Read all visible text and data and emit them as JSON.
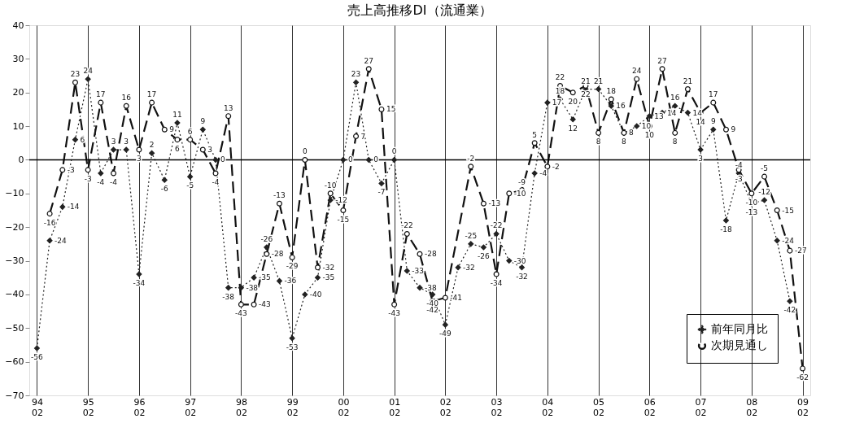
{
  "chart_data": {
    "type": "line",
    "title": "売上高推移DI（流通業）",
    "categories": [
      "94 02",
      null,
      null,
      null,
      "95 02",
      null,
      null,
      null,
      "96 02",
      null,
      null,
      null,
      "97 02",
      null,
      null,
      null,
      "98 02",
      null,
      null,
      null,
      "99 02",
      null,
      null,
      null,
      "00 02",
      null,
      null,
      null,
      "01 02",
      null,
      null,
      null,
      "02 02",
      null,
      null,
      null,
      "03 02",
      null,
      null,
      null,
      "04 02",
      null,
      null,
      null,
      "05 02",
      null,
      null,
      null,
      "06 02",
      null,
      null,
      null,
      "07 02",
      null,
      null,
      null,
      "08 02",
      null,
      null,
      null,
      "09 02"
    ],
    "series": [
      {
        "name": "前年同月比",
        "color": "#222222",
        "line_style": "dotted",
        "marker": "diamond",
        "values": [
          -56,
          -24,
          -14,
          6,
          24,
          -4,
          3,
          3,
          -34,
          2,
          -6,
          11,
          -5,
          9,
          0,
          -38,
          -38,
          -35,
          -26,
          -36,
          -53,
          -40,
          -35,
          -12,
          0,
          23,
          0,
          -7,
          0,
          -33,
          -38,
          -40,
          -49,
          -32,
          -25,
          -26,
          -22,
          -30,
          -32,
          -4,
          17,
          18,
          12,
          21,
          21,
          16,
          8,
          10,
          13,
          14,
          16,
          14,
          3,
          9,
          -18,
          -4,
          -13,
          -12,
          -24,
          -42,
          null
        ]
      },
      {
        "name": "次期見通し",
        "color": "#111111",
        "line_style": "dashed",
        "marker": "circle",
        "values": [
          null,
          -16,
          -3,
          23,
          -3,
          17,
          -4,
          16,
          3,
          17,
          9,
          6,
          6,
          3,
          -4,
          13,
          -43,
          -43,
          -28,
          -13,
          -29,
          0,
          -32,
          -10,
          -15,
          7,
          27,
          15,
          -43,
          -22,
          -28,
          -42,
          -41,
          null,
          -2,
          -13,
          -34,
          -10,
          -9,
          5,
          -2,
          22,
          20,
          22,
          8,
          18,
          8,
          24,
          10,
          27,
          8,
          21,
          14,
          17,
          9,
          -3,
          -10,
          -5,
          -15,
          -27,
          -62
        ]
      }
    ],
    "ylim": [
      -70,
      40
    ],
    "yticks": [
      -70,
      -60,
      -50,
      -40,
      -30,
      -20,
      -10,
      0,
      10,
      20,
      30,
      40
    ],
    "ref_lines": [
      {
        "axis": "y",
        "value": 0
      }
    ],
    "grid": "x",
    "legend": "bottom right",
    "data_labels": true
  }
}
